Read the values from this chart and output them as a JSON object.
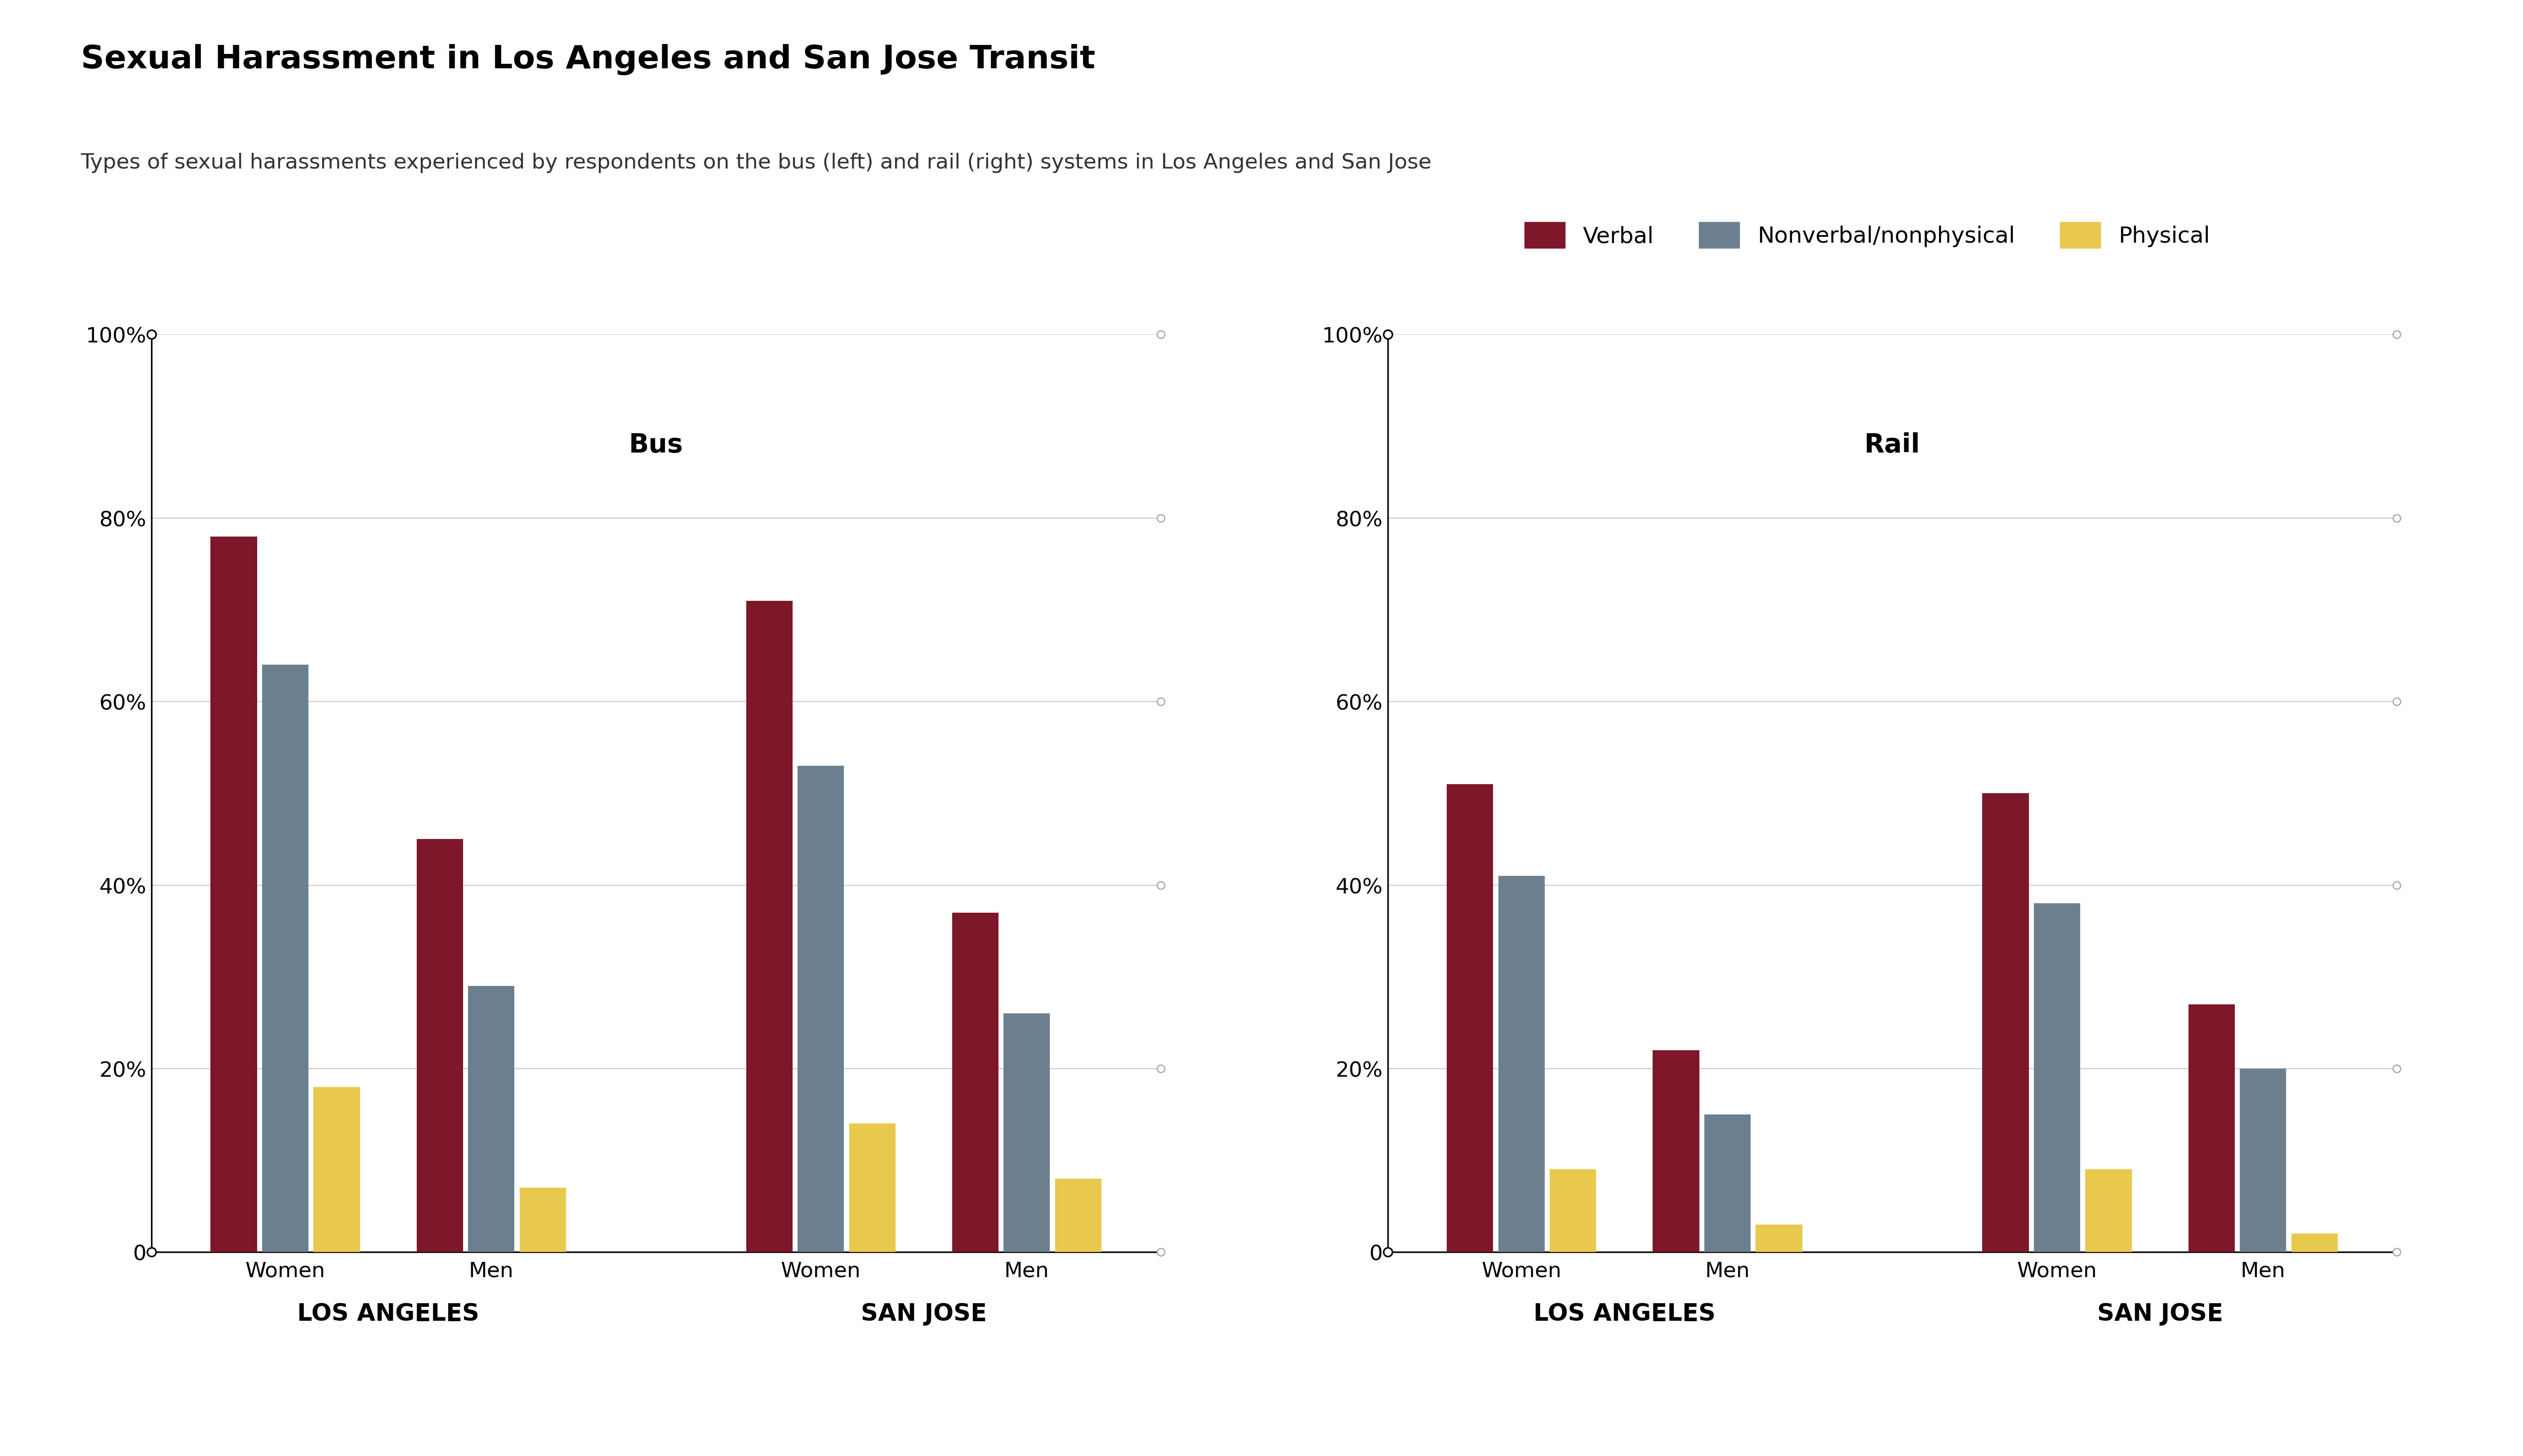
{
  "title": "Sexual Harassment in Los Angeles and San Jose Transit",
  "subtitle": "Types of sexual harassments experienced by respondents on the bus (left) and rail (right) systems in Los Angeles and San Jose",
  "legend_labels": [
    "Verbal",
    "Nonverbal/nonphysical",
    "Physical"
  ],
  "colors": {
    "verbal": "#7B1728",
    "nonverbal": "#6B7F8F",
    "physical": "#E8C84A",
    "background": "#FFFFFF",
    "grid": "#C8C8C8",
    "dot": "#AAAAAA",
    "axis_line": "#000000"
  },
  "bus": {
    "title": "Bus",
    "groups": [
      "Women",
      "Men",
      "Women",
      "Men"
    ],
    "city_labels": [
      "LOS ANGELES",
      "SAN JOSE"
    ],
    "verbal": [
      78,
      45,
      71,
      37
    ],
    "nonverbal": [
      64,
      29,
      53,
      26
    ],
    "physical": [
      18,
      7,
      14,
      8
    ]
  },
  "rail": {
    "title": "Rail",
    "groups": [
      "Women",
      "Men",
      "Women",
      "Men"
    ],
    "city_labels": [
      "LOS ANGELES",
      "SAN JOSE"
    ],
    "verbal": [
      51,
      22,
      50,
      27
    ],
    "nonverbal": [
      41,
      15,
      38,
      20
    ],
    "physical": [
      9,
      3,
      9,
      2
    ]
  },
  "ylim": [
    0,
    100
  ],
  "yticks": [
    0,
    20,
    40,
    60,
    80,
    100
  ],
  "yticklabels": [
    "0",
    "20%",
    "40%",
    "60%",
    "80%",
    "100%"
  ],
  "bar_width": 0.25,
  "title_fontsize": 52,
  "subtitle_fontsize": 34,
  "tick_fontsize": 34,
  "legend_fontsize": 36,
  "chart_title_fontsize": 42,
  "city_label_fontsize": 38
}
